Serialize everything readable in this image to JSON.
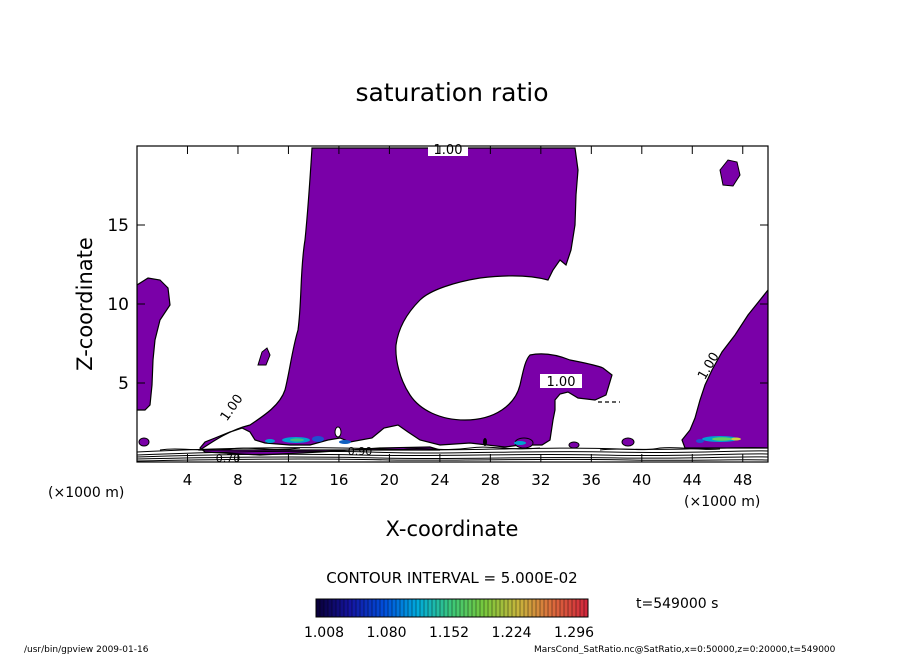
{
  "chart_data": {
    "type": "contour",
    "title": "saturation ratio",
    "xlabel": "X-coordinate",
    "ylabel": "Z-coordinate",
    "x_unit": "(×1000 m)",
    "y_unit": "(×1000 m)",
    "xlim": [
      0,
      50
    ],
    "ylim": [
      0,
      20
    ],
    "x_ticks": [
      4,
      8,
      12,
      16,
      20,
      24,
      28,
      32,
      36,
      40,
      44,
      48
    ],
    "y_ticks": [
      5,
      10,
      15
    ],
    "contour_labels": [
      {
        "text": "1.00",
        "x": 24.8,
        "z": 19.4
      },
      {
        "text": "1.00",
        "x": 33.8,
        "z": 5.0
      },
      {
        "text": "1.00",
        "x": 7.6,
        "z": 3.6
      },
      {
        "text": "1.00",
        "x": 45.8,
        "z": 6.0
      },
      {
        "text": "0.90",
        "x": 17.8,
        "z": 0.5
      },
      {
        "text": "0.70",
        "x": 7.2,
        "z": 0.1
      }
    ],
    "contour_interval_label": "CONTOUR INTERVAL = 5.000E-02",
    "colorbar": {
      "labels": [
        "1.008",
        "1.080",
        "1.152",
        "1.224",
        "1.296"
      ],
      "min": 1.008,
      "max": 1.296
    },
    "time_label": "t=549000 s"
  },
  "footer": {
    "left": "/usr/bin/gpview   2009-01-16",
    "right": "MarsCond_SatRatio.nc@SatRatio,x=0:50000,z=0:20000,t=549000"
  },
  "colors": {
    "fill": "#7a00a8",
    "contour": "#000000"
  }
}
